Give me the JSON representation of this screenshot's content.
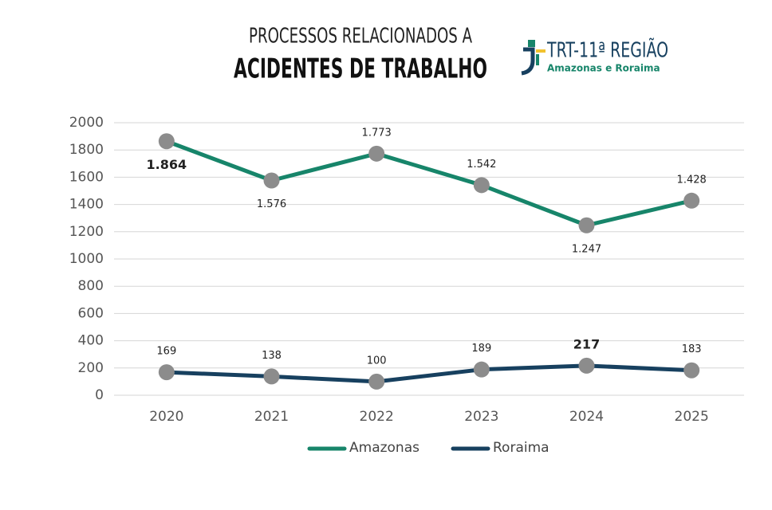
{
  "chart_data": {
    "type": "line",
    "title": "ACIDENTES DE TRABALHO",
    "subtitle": "PROCESSOS RELACIONADOS A",
    "logo": {
      "name": "TRT-11ª REGIÃO",
      "subtitle": "Amazonas e Roraima"
    },
    "categories": [
      "2020",
      "2021",
      "2022",
      "2023",
      "2024",
      "2025"
    ],
    "series": [
      {
        "name": "Amazonas",
        "color": "#17856a",
        "values": [
          1864,
          1576,
          1773,
          1542,
          1247,
          1428
        ],
        "value_labels": [
          "1.864",
          "1.576",
          "1.773",
          "1.542",
          "1.247",
          "1.428"
        ]
      },
      {
        "name": "Roraima",
        "color": "#17405f",
        "values": [
          169,
          138,
          100,
          189,
          217,
          183
        ]
      }
    ],
    "ylim": [
      0,
      2000
    ],
    "yticks": [
      0,
      200,
      400,
      600,
      800,
      1000,
      1200,
      1400,
      1600,
      1800,
      2000
    ],
    "grid": true,
    "legend": "bottom"
  }
}
